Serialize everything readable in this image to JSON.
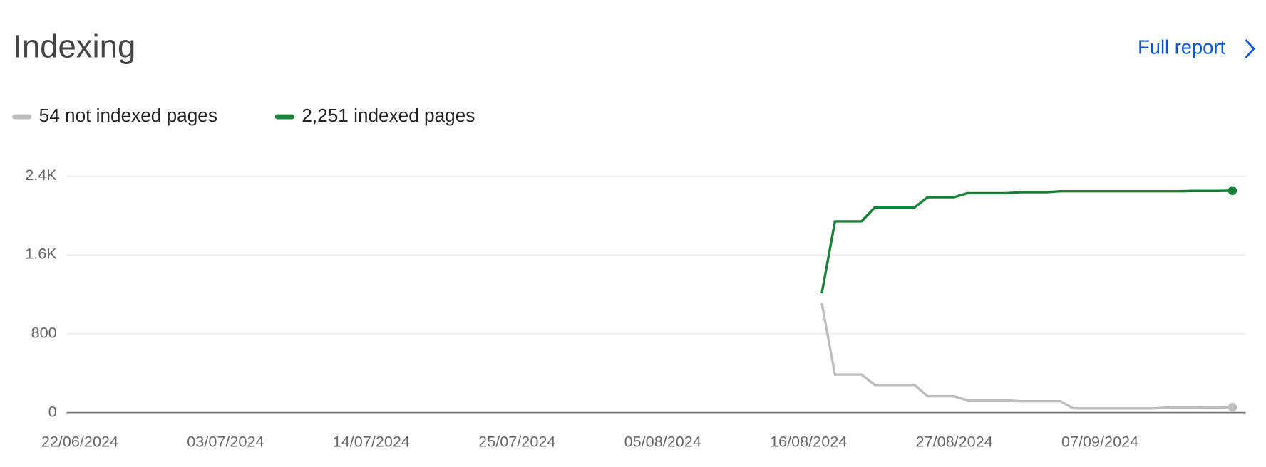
{
  "title": "Indexing",
  "link": "Full report",
  "chart_data": {
    "type": "line",
    "x": [
      "17/08/2024",
      "18/08/2024",
      "19/08/2024",
      "20/08/2024",
      "21/08/2024",
      "22/08/2024",
      "23/08/2024",
      "24/08/2024",
      "25/08/2024",
      "26/08/2024",
      "27/08/2024",
      "28/08/2024",
      "29/08/2024",
      "30/08/2024",
      "31/08/2024",
      "01/09/2024",
      "02/09/2024",
      "03/09/2024",
      "04/09/2024",
      "05/09/2024",
      "06/09/2024",
      "07/09/2024",
      "08/09/2024",
      "09/09/2024",
      "10/09/2024",
      "11/09/2024",
      "12/09/2024",
      "13/09/2024",
      "14/09/2024",
      "15/09/2024",
      "16/09/2024",
      "17/09/2024"
    ],
    "series": [
      {
        "name": "54 not indexed pages",
        "color": "#bdbdbd",
        "values": [
          1110,
          386,
          386,
          386,
          280,
          280,
          280,
          280,
          165,
          165,
          165,
          125,
          125,
          125,
          125,
          115,
          115,
          115,
          115,
          42,
          42,
          42,
          42,
          42,
          42,
          42,
          50,
          50,
          50,
          52,
          52,
          54
        ]
      },
      {
        "name": "2,251 indexed pages",
        "color": "#188038",
        "values": [
          1210,
          1940,
          1940,
          1940,
          2080,
          2080,
          2080,
          2080,
          2185,
          2185,
          2185,
          2225,
          2225,
          2225,
          2225,
          2235,
          2235,
          2235,
          2245,
          2245,
          2245,
          2245,
          2245,
          2245,
          2245,
          2245,
          2245,
          2245,
          2248,
          2248,
          2248,
          2251
        ]
      }
    ],
    "xlim": [
      "21/06/2024",
      "18/09/2024"
    ],
    "xticks": [
      "22/06/2024",
      "03/07/2024",
      "14/07/2024",
      "25/07/2024",
      "05/08/2024",
      "16/08/2024",
      "27/08/2024",
      "07/09/2024"
    ],
    "ylim": [
      0,
      2400
    ],
    "yticks": [
      0,
      800,
      {
        "value": 1600,
        "label": "1.6K"
      },
      {
        "value": 2400,
        "label": "2.4K"
      }
    ],
    "grid": true
  }
}
